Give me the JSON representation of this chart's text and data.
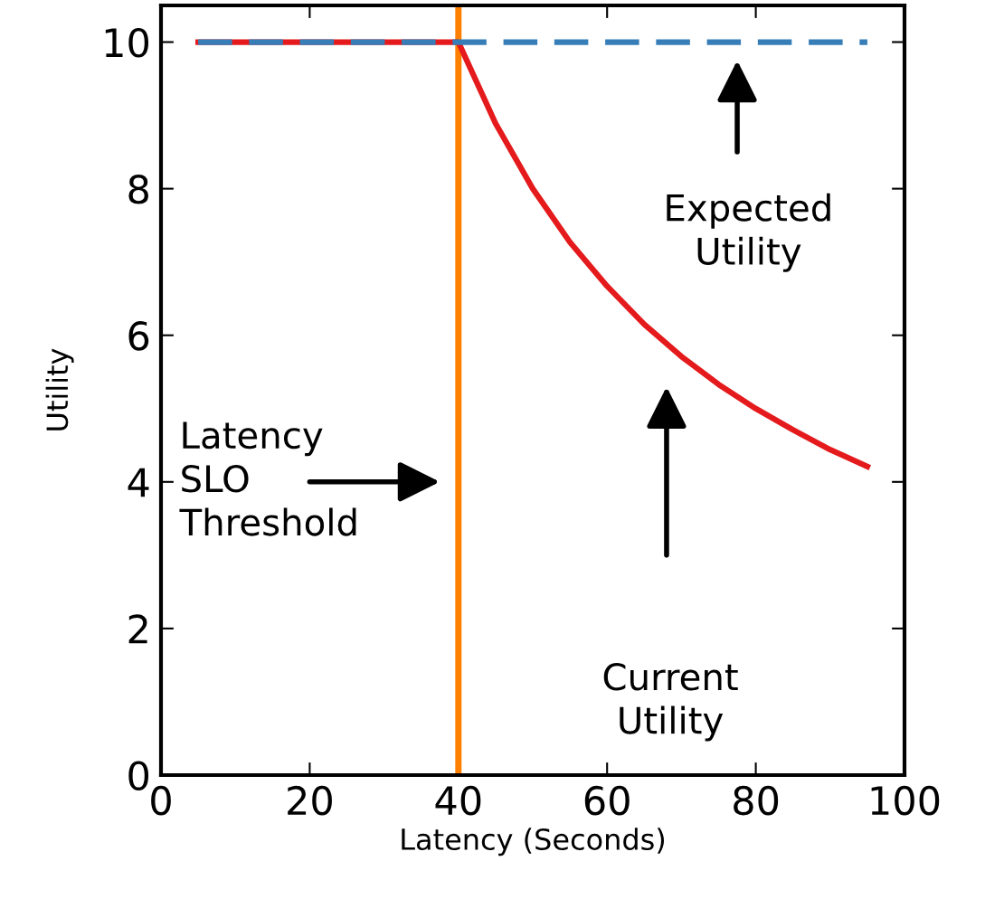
{
  "chart_data": {
    "type": "line",
    "xlabel": "Latency (Seconds)",
    "ylabel": "Utility",
    "xlim": [
      0,
      100
    ],
    "ylim": [
      0,
      10.5
    ],
    "xticks": [
      0,
      20,
      40,
      60,
      80,
      100
    ],
    "yticks": [
      0,
      2,
      4,
      6,
      8,
      10
    ],
    "grid": false,
    "legend": false,
    "series": [
      {
        "color": "#e41a1c",
        "line_style": "solid",
        "x": [
          5,
          40,
          45,
          50,
          55,
          60,
          65,
          70,
          75,
          80,
          85,
          90,
          95
        ],
        "values": [
          10,
          10,
          8.89,
          8,
          7.27,
          6.67,
          6.15,
          5.71,
          5.33,
          5,
          4.71,
          4.44,
          4.21
        ]
      },
      {
        "color": "#377eb8",
        "line_style": "dashed",
        "x": [
          5,
          95
        ],
        "values": [
          10,
          10
        ]
      }
    ],
    "ref_lines": [
      {
        "axis": "x",
        "value": 40,
        "color": "#ff7f00",
        "line_style": "solid"
      }
    ],
    "annotations": [
      "Latency\nSLO\nThreshold",
      "Expected\nUtility",
      "Current\nUtility"
    ]
  }
}
